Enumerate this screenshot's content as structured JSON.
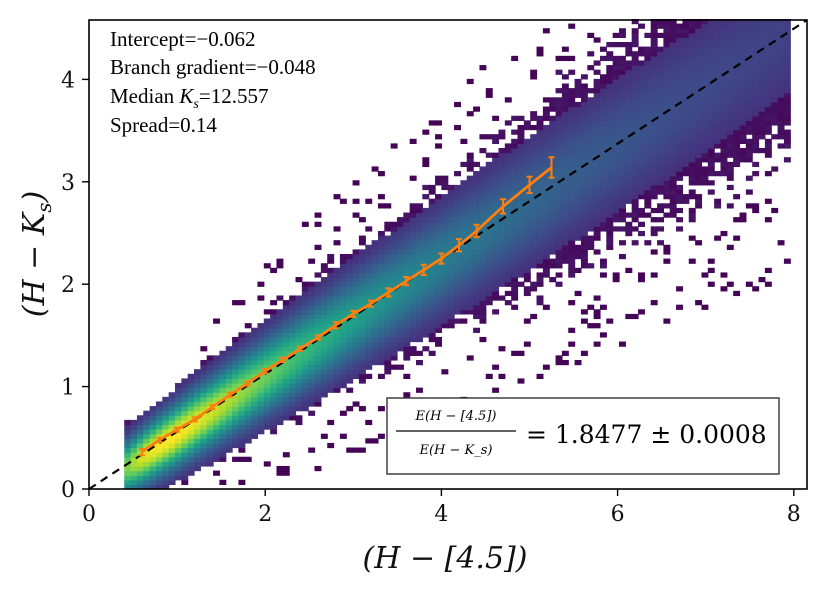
{
  "chart_data": {
    "type": "heatmap",
    "title": "",
    "xlabel": "(H − [4.5])",
    "ylabel": "(H − K_s)",
    "ylabel_main": "(H − K",
    "ylabel_sub": "s",
    "ylabel_close": ")",
    "xlim": [
      0,
      8.15
    ],
    "ylim": [
      0,
      4.58
    ],
    "xticks": [
      0,
      2,
      4,
      6,
      8
    ],
    "yticks": [
      0,
      1,
      2,
      3,
      4
    ],
    "xtick_labels": [
      "0",
      "2",
      "4",
      "6",
      "8"
    ],
    "ytick_labels": [
      "0",
      "1",
      "2",
      "3",
      "4"
    ],
    "grid": false,
    "colormap": "viridis",
    "density_model": {
      "x_range": [
        0.4,
        7.9
      ],
      "ridge_slope": 0.565,
      "ridge_intercept": -0.03,
      "core_halfwidth_at_low_x": 0.12,
      "halfwidth_growth": 0.035,
      "peak_x": 0.9
    },
    "series": [
      {
        "name": "",
        "type": "line",
        "style": "dashed",
        "color": "#000000",
        "x": [
          0,
          8.15
        ],
        "y": [
          0.0,
          4.58
        ]
      },
      {
        "name": "",
        "type": "line_errorbar",
        "color": "#ff7f0e",
        "x": [
          0.6,
          0.8,
          1.0,
          1.2,
          1.4,
          1.6,
          1.8,
          2.0,
          2.2,
          2.4,
          2.6,
          2.8,
          3.0,
          3.2,
          3.4,
          3.6,
          3.8,
          4.0,
          4.2,
          4.4,
          4.7,
          5.0,
          5.25
        ],
        "y": [
          0.36,
          0.48,
          0.58,
          0.68,
          0.8,
          0.92,
          1.03,
          1.15,
          1.26,
          1.37,
          1.48,
          1.6,
          1.71,
          1.81,
          1.92,
          2.03,
          2.14,
          2.25,
          2.38,
          2.52,
          2.76,
          2.97,
          3.14
        ],
        "yerr": [
          0.03,
          0.02,
          0.02,
          0.02,
          0.02,
          0.02,
          0.02,
          0.02,
          0.02,
          0.02,
          0.02,
          0.03,
          0.03,
          0.03,
          0.04,
          0.04,
          0.05,
          0.05,
          0.06,
          0.06,
          0.07,
          0.08,
          0.1
        ]
      }
    ],
    "annotations": {
      "intercept": "Intercept=−0.062",
      "branch_gradient": "Branch gradient=−0.048",
      "median_ks_prefix": "Median ",
      "median_ks_var": "K",
      "median_ks_sub": "s",
      "median_ks_value": "=12.557",
      "spread": "Spread=0.14"
    },
    "ratio_box": {
      "numerator": "E(H − [4.5])",
      "denominator": "E(H − K_s)",
      "value": "= 1.8477 ± 0.0008"
    }
  }
}
